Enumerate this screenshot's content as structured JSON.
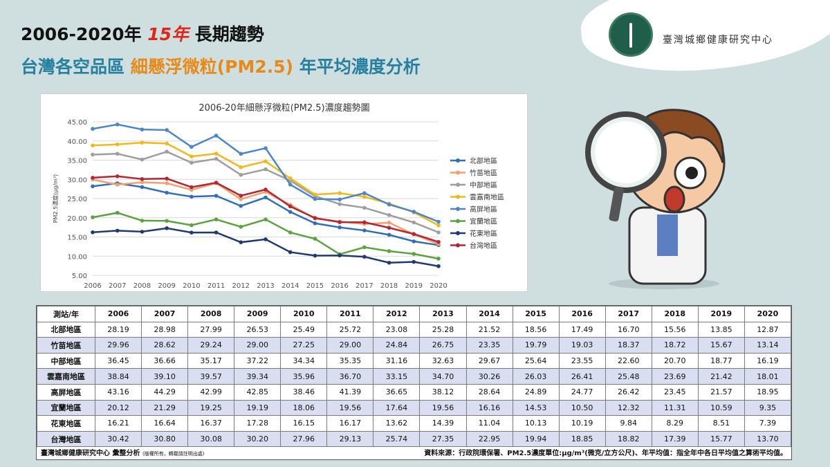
{
  "header": {
    "title_line1_a": "2006-2020年",
    "title_line1_accent": "15年",
    "title_line1_b": "長期趨勢",
    "title_line2_a": "台灣各空品區",
    "title_line2_accent": "細懸浮微粒(PM2.5)",
    "title_line2_b": "年平均濃度分析"
  },
  "org": {
    "name": "臺灣城鄉健康研究中心"
  },
  "chart_data": {
    "type": "line",
    "title": "2006-20年細懸浮微粒(PM2.5)濃度趨勢圖",
    "ylabel": "PM2.5濃度(μg/m³)",
    "x": [
      "2006",
      "2007",
      "2008",
      "2009",
      "2010",
      "2011",
      "2012",
      "2013",
      "2014",
      "2015",
      "2016",
      "2017",
      "2018",
      "2019",
      "2020"
    ],
    "y_ticks": [
      "5.00",
      "10.00",
      "15.00",
      "20.00",
      "25.00",
      "30.00",
      "35.00",
      "40.00",
      "45.00"
    ],
    "ylim": [
      5,
      45
    ],
    "grid": true,
    "legend_position": "right",
    "series": [
      {
        "name": "北部地區",
        "color": "#2f6fb5",
        "values": [
          28.19,
          28.98,
          27.99,
          26.53,
          25.49,
          25.72,
          23.08,
          25.28,
          21.52,
          18.56,
          17.49,
          16.7,
          15.56,
          13.85,
          12.87
        ]
      },
      {
        "name": "竹苗地區",
        "color": "#f2a072",
        "values": [
          29.96,
          28.62,
          29.24,
          29.0,
          27.25,
          29.0,
          24.84,
          26.75,
          23.35,
          19.79,
          19.03,
          18.37,
          18.72,
          15.67,
          13.14
        ]
      },
      {
        "name": "中部地區",
        "color": "#9e9e9e",
        "values": [
          36.45,
          36.66,
          35.17,
          37.22,
          34.34,
          35.35,
          31.16,
          32.63,
          29.67,
          25.64,
          23.55,
          22.6,
          20.7,
          18.77,
          16.19
        ]
      },
      {
        "name": "雲嘉南地區",
        "color": "#f2b71a",
        "values": [
          38.84,
          39.1,
          39.57,
          39.34,
          35.96,
          36.7,
          33.15,
          34.7,
          30.26,
          26.03,
          26.41,
          25.48,
          23.69,
          21.42,
          18.01
        ]
      },
      {
        "name": "高屏地區",
        "color": "#4a86c8",
        "values": [
          43.16,
          44.29,
          42.99,
          42.85,
          38.46,
          41.39,
          36.65,
          38.12,
          28.64,
          24.89,
          24.77,
          26.42,
          23.45,
          21.57,
          18.95
        ]
      },
      {
        "name": "宜蘭地區",
        "color": "#5aa33e",
        "values": [
          20.12,
          21.29,
          19.25,
          19.19,
          18.06,
          19.56,
          17.64,
          19.56,
          16.16,
          14.53,
          10.5,
          12.32,
          11.31,
          10.59,
          9.35
        ]
      },
      {
        "name": "花東地區",
        "color": "#1f3a73",
        "values": [
          16.21,
          16.64,
          16.37,
          17.28,
          16.15,
          16.17,
          13.62,
          14.39,
          11.04,
          10.13,
          10.19,
          9.84,
          8.29,
          8.51,
          7.39
        ]
      },
      {
        "name": "台灣地區",
        "color": "#b32632",
        "values": [
          30.42,
          30.8,
          30.08,
          30.2,
          27.96,
          29.13,
          25.74,
          27.35,
          22.95,
          19.94,
          18.85,
          18.82,
          17.39,
          15.77,
          13.7
        ]
      }
    ]
  },
  "table": {
    "header_label": "測站/年",
    "footer_left": "臺灣城鄉健康研究中心 彙整分析",
    "footer_left_small": "(版權所有，轉載請註明出處)",
    "footer_right": "資料來源：行政院環保署、PM2.5濃度單位:μg/m³(微克/立方公尺)、年平均值：指全年中各日平均值之算術平均值。"
  }
}
